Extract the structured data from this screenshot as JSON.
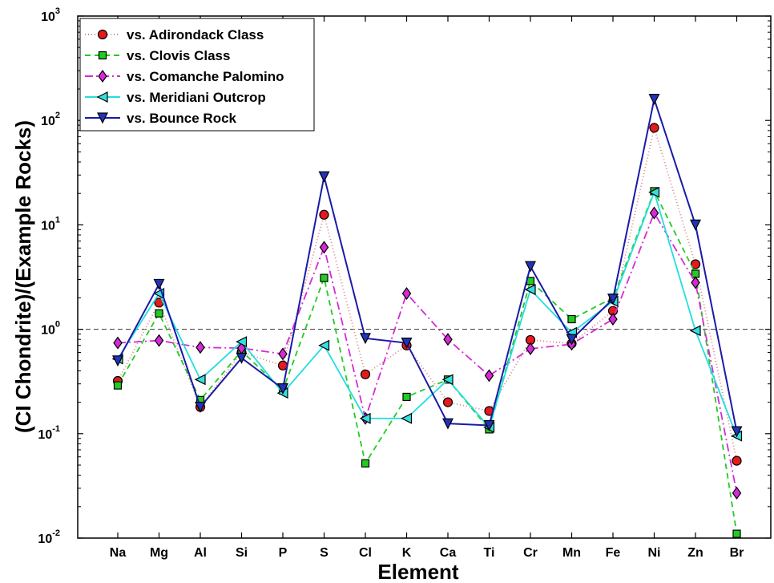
{
  "chart_data": {
    "type": "line",
    "xlabel": "Element",
    "ylabel": "(CI Chondrite)/(Example Rocks)",
    "yscale": "log",
    "ylim": [
      0.01,
      1000
    ],
    "y_ticks": [
      {
        "value": 0.01,
        "base": "10",
        "exp": "-2"
      },
      {
        "value": 0.1,
        "base": "10",
        "exp": "-1"
      },
      {
        "value": 1,
        "base": "10",
        "exp": "0"
      },
      {
        "value": 10,
        "base": "10",
        "exp": "1"
      },
      {
        "value": 100,
        "base": "10",
        "exp": "2"
      },
      {
        "value": 1000,
        "base": "10",
        "exp": "3"
      }
    ],
    "reference_line": 1,
    "grid": false,
    "legend_position": "top-left",
    "categories": [
      "Na",
      "Mg",
      "Al",
      "Si",
      "P",
      "S",
      "Cl",
      "K",
      "Ca",
      "Ti",
      "Cr",
      "Mn",
      "Fe",
      "Ni",
      "Zn",
      "Br"
    ],
    "series": [
      {
        "name": "vs. Adirondack Class",
        "color": "#e41a1c",
        "line_color": "#d98080",
        "dash": "1,3",
        "marker": "circle",
        "values": [
          0.32,
          1.8,
          0.18,
          0.6,
          0.45,
          12.5,
          0.37,
          0.7,
          0.2,
          0.165,
          0.79,
          0.73,
          1.5,
          85,
          4.2,
          0.055
        ]
      },
      {
        "name": "vs. Clovis Class",
        "color": "#22cc22",
        "line_color": "#22cc22",
        "dash": "7,5",
        "marker": "square",
        "values": [
          0.29,
          1.42,
          0.21,
          0.62,
          0.26,
          3.1,
          0.052,
          0.225,
          0.33,
          0.11,
          2.9,
          1.25,
          2.0,
          21,
          3.4,
          0.011
        ]
      },
      {
        "name": "vs. Comanche Palomino",
        "color": "#d62ad6",
        "line_color": "#d62ad6",
        "dash": "10,4,2,4",
        "marker": "diamond",
        "values": [
          0.74,
          0.78,
          0.67,
          0.66,
          0.58,
          6.1,
          0.14,
          2.2,
          0.8,
          0.36,
          0.65,
          0.72,
          1.25,
          13,
          2.8,
          0.027
        ]
      },
      {
        "name": "vs. Meridiani Outcrop",
        "color": "#33e0e0",
        "line_color": "#22dede",
        "dash": "",
        "marker": "triangle-left",
        "values": [
          0.52,
          2.2,
          0.33,
          0.76,
          0.245,
          0.7,
          0.14,
          0.14,
          0.33,
          0.115,
          2.4,
          0.93,
          1.85,
          20.5,
          0.97,
          0.095
        ]
      },
      {
        "name": "vs. Bounce Rock",
        "color": "#2233bb",
        "line_color": "#1a1aa8",
        "dash": "",
        "marker": "triangle-down",
        "values": [
          0.5,
          2.7,
          0.18,
          0.53,
          0.27,
          29,
          0.82,
          0.74,
          0.125,
          0.12,
          4.0,
          0.8,
          1.95,
          160,
          10,
          0.105
        ]
      }
    ]
  }
}
